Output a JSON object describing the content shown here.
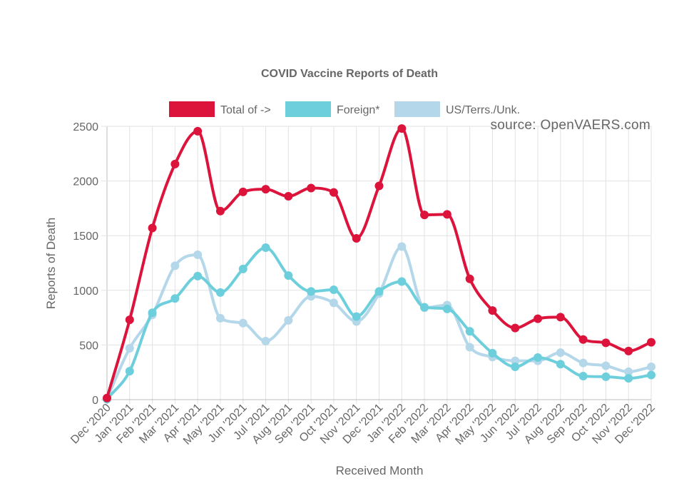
{
  "chart_data": {
    "type": "line",
    "title": "COVID Vaccine Reports of Death",
    "source": "source: OpenVAERS.com",
    "xlabel": "Received Month",
    "ylabel": "Reports of Death",
    "ylim": [
      0,
      2500
    ],
    "yticks": [
      0,
      500,
      1000,
      1500,
      2000,
      2500
    ],
    "grid": true,
    "legend_position": "top",
    "categories": [
      "Dec '2020",
      "Jan '2021",
      "Feb '2021",
      "Mar '2021",
      "Apr '2021",
      "May '2021",
      "Jun '2021",
      "Jul '2021",
      "Aug '2021",
      "Sep '2021",
      "Oct '2021",
      "Nov '2021",
      "Dec '2021",
      "Jan '2022",
      "Feb '2022",
      "Mar '2022",
      "Apr '2022",
      "May '2022",
      "Jun '2022",
      "Jul '2022",
      "Aug '2022",
      "Sep '2022",
      "Oct '2022",
      "Nov '2022",
      "Dec '2022"
    ],
    "series": [
      {
        "name": "Total of ->",
        "color": "#dc143c",
        "values": [
          15,
          730,
          1570,
          2155,
          2455,
          1725,
          1900,
          1925,
          1860,
          1935,
          1895,
          1475,
          1955,
          2480,
          1690,
          1695,
          1105,
          815,
          655,
          740,
          755,
          550,
          520,
          445,
          525
        ]
      },
      {
        "name": "Foreign*",
        "color": "#6ecfdc",
        "values": [
          5,
          260,
          795,
          925,
          1130,
          980,
          1195,
          1390,
          1135,
          990,
          1005,
          760,
          990,
          1080,
          845,
          830,
          625,
          425,
          300,
          385,
          325,
          215,
          210,
          195,
          225
        ]
      },
      {
        "name": "US/Terrs./Unk.",
        "color": "#b4d7ea",
        "values": [
          10,
          470,
          775,
          1225,
          1325,
          745,
          700,
          535,
          725,
          945,
          885,
          715,
          970,
          1400,
          840,
          865,
          480,
          390,
          355,
          355,
          430,
          335,
          310,
          255,
          300
        ]
      }
    ]
  }
}
